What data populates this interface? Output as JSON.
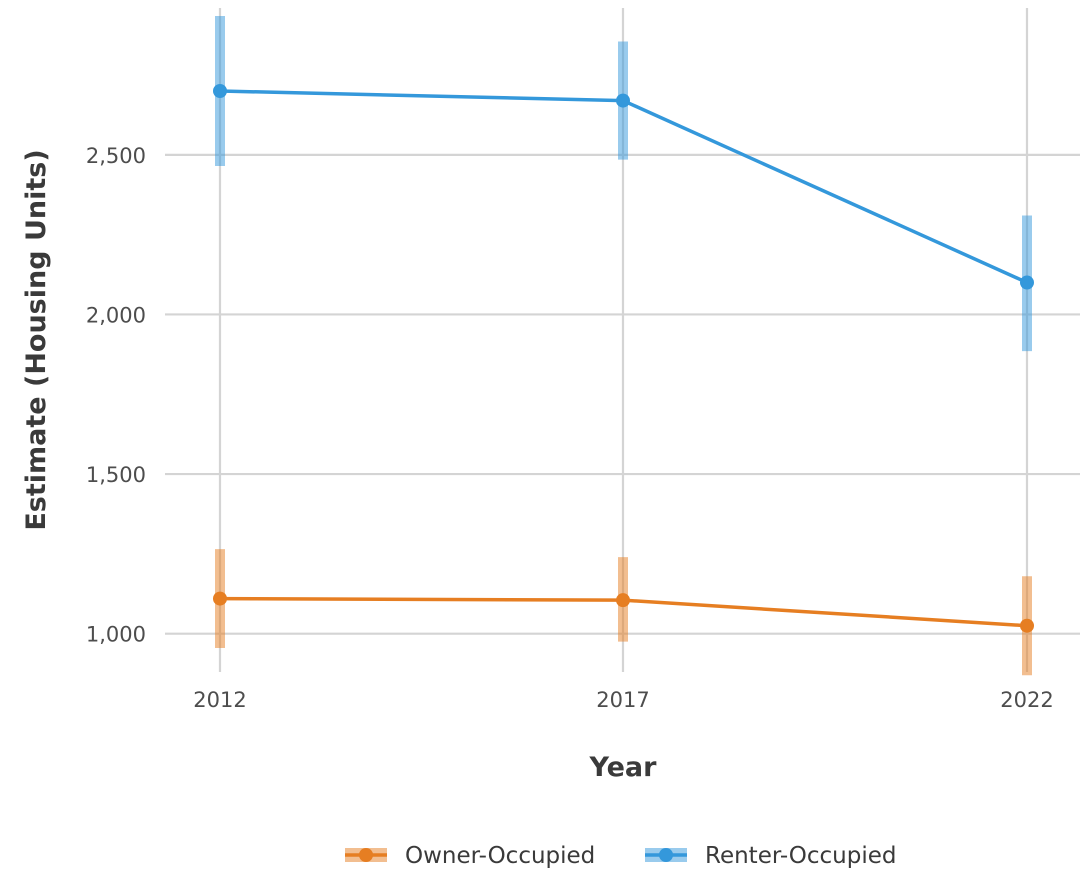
{
  "chart_data": {
    "type": "line",
    "xlabel": "Year",
    "ylabel": "Estimate (Housing Units)",
    "categories": [
      "2012",
      "2017",
      "2022"
    ],
    "yticks": [
      1000,
      1500,
      2000,
      2500
    ],
    "ytick_labels": [
      "1,000",
      "1,500",
      "2,000",
      "2,500"
    ],
    "ylim": [
      880,
      2960
    ],
    "grid": true,
    "legend_position": "bottom",
    "series": [
      {
        "name": "Owner-Occupied",
        "color": "#e67e22",
        "values": [
          1110,
          1105,
          1025
        ],
        "lower": [
          955,
          975,
          870
        ],
        "upper": [
          1265,
          1240,
          1180
        ]
      },
      {
        "name": "Renter-Occupied",
        "color": "#3498db",
        "values": [
          2700,
          2670,
          2100
        ],
        "lower": [
          2465,
          2485,
          1885
        ],
        "upper": [
          2935,
          2855,
          2310
        ]
      }
    ]
  }
}
